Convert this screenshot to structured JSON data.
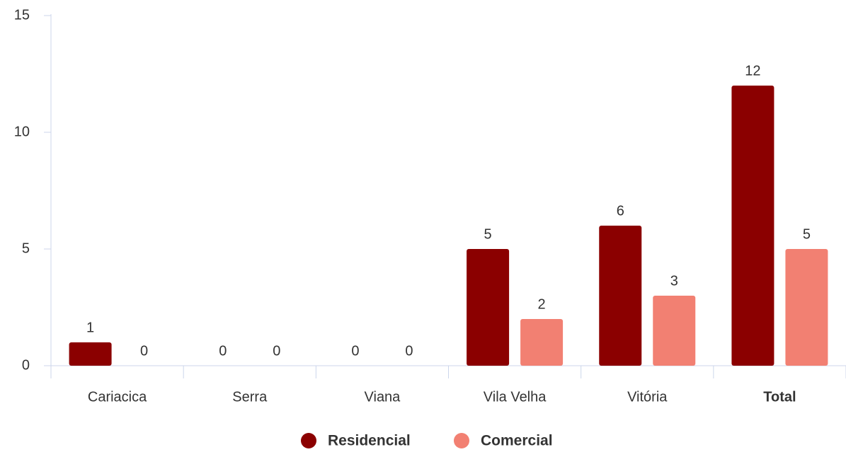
{
  "chart_data": {
    "type": "bar",
    "categories": [
      "Cariacica",
      "Serra",
      "Viana",
      "Vila Velha",
      "Vitória",
      "Total"
    ],
    "series": [
      {
        "name": "Residencial",
        "color": "#8b0000",
        "values": [
          1,
          0,
          0,
          5,
          6,
          12
        ]
      },
      {
        "name": "Comercial",
        "color": "#f28072",
        "values": [
          0,
          0,
          0,
          2,
          3,
          5
        ]
      }
    ],
    "ylim": [
      0,
      15
    ],
    "yticks": [
      0,
      5,
      10,
      15
    ],
    "grid": false,
    "legend": "bottom"
  }
}
